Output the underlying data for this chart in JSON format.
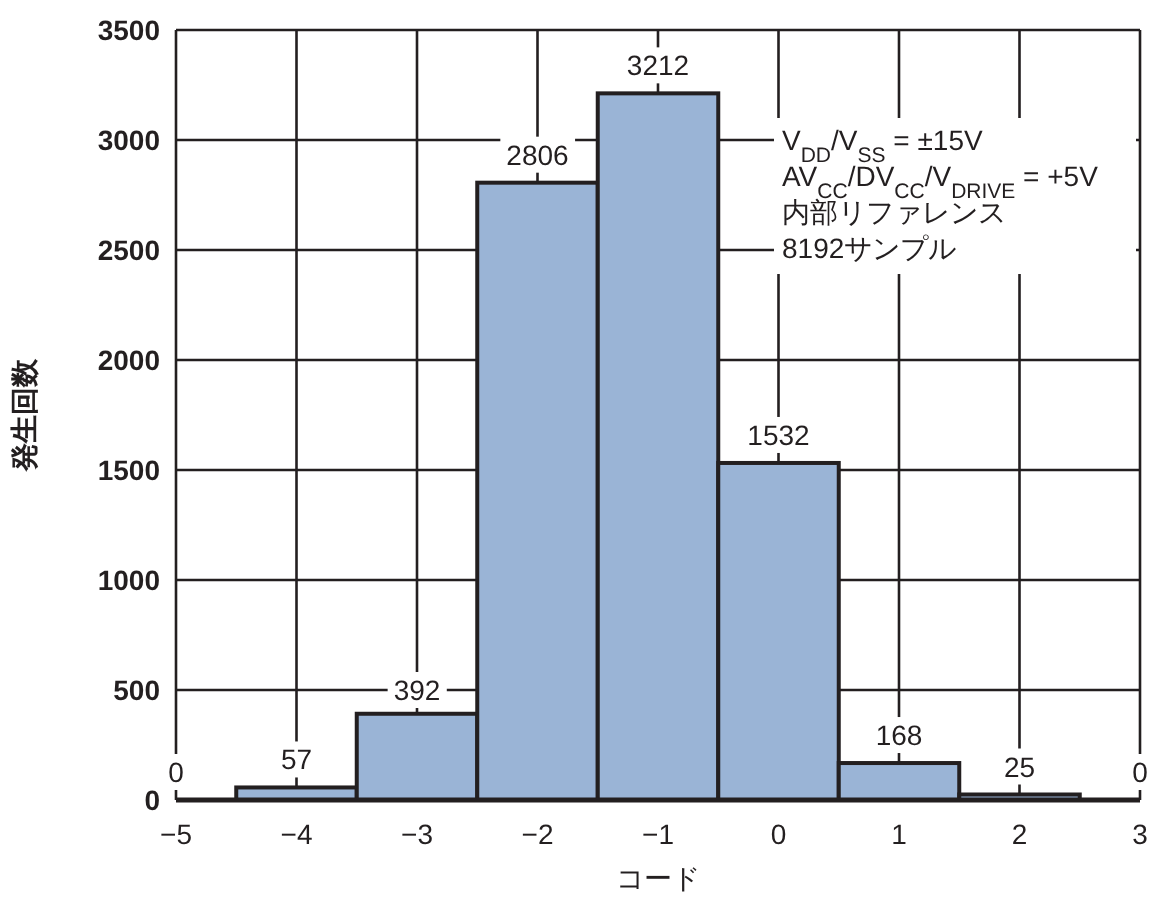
{
  "chart_data": {
    "type": "bar",
    "xlabel": "コード",
    "ylabel": "発生回数",
    "x": [
      -5,
      -4,
      -3,
      -2,
      -1,
      0,
      1,
      2,
      3
    ],
    "values": [
      0,
      57,
      392,
      2806,
      3212,
      1532,
      168,
      25,
      0
    ],
    "color": "#9ab4d6",
    "data_labels": true,
    "xlim": [
      -5,
      3
    ],
    "xticks": [
      -5,
      -4,
      -3,
      -2,
      -1,
      0,
      1,
      2,
      3
    ],
    "ylim": [
      0,
      3500
    ],
    "yticks": [
      0,
      500,
      1000,
      1500,
      2000,
      2500,
      3000,
      3500
    ],
    "grid": true,
    "annotations": [
      "V$_{DD}$/V$_{SS}$ = ±15V",
      "AV$_{CC}$/DV$_{CC}$/V$_{DRIVE}$ = +5V",
      "内部リファレンス",
      "8192サンプル"
    ]
  }
}
